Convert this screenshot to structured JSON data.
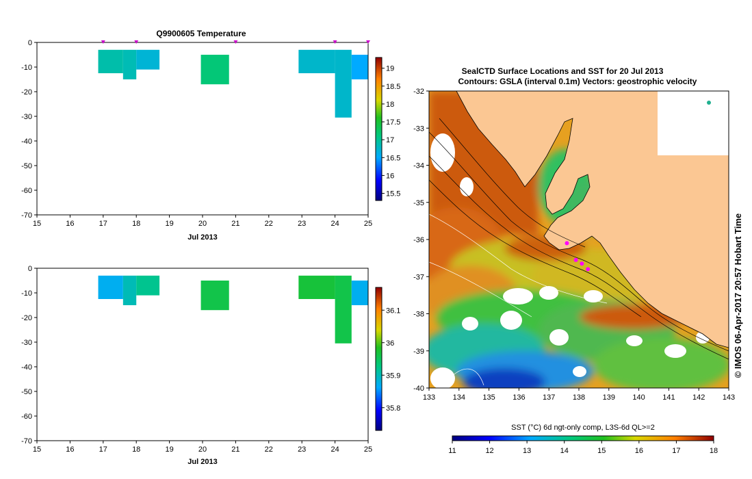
{
  "chart_data": [
    {
      "type": "heatmap",
      "title": "Q9900605  Temperature",
      "xlabel": "Jul 2013",
      "x_ticks": [
        "15",
        "16",
        "17",
        "18",
        "19",
        "20",
        "21",
        "22",
        "23",
        "24",
        "25"
      ],
      "xlim": [
        15,
        25
      ],
      "y_ticks": [
        "0",
        "-10",
        "-20",
        "-30",
        "-40",
        "-50",
        "-60",
        "-70"
      ],
      "ylim": [
        -70,
        0
      ],
      "profile_markers_day": [
        17,
        18,
        21,
        24,
        25
      ],
      "cells": [
        {
          "x0": 16.85,
          "x1": 17.6,
          "y0": -3,
          "y1": -12.5,
          "value": 16.9
        },
        {
          "x0": 17.6,
          "x1": 18.0,
          "y0": -3,
          "y1": -15,
          "value": 16.85
        },
        {
          "x0": 18.0,
          "x1": 18.7,
          "y0": -3,
          "y1": -11,
          "value": 16.7
        },
        {
          "x0": 19.95,
          "x1": 20.8,
          "y0": -5,
          "y1": -17,
          "value": 17.15
        },
        {
          "x0": 22.9,
          "x1": 24.0,
          "y0": -3,
          "y1": -12.5,
          "value": 16.75
        },
        {
          "x0": 24.0,
          "x1": 24.5,
          "y0": -3,
          "y1": -30.5,
          "value": 16.75
        },
        {
          "x0": 24.5,
          "x1": 25.0,
          "y0": -5,
          "y1": -15,
          "value": 16.5
        }
      ],
      "colorbar": {
        "ticks": [
          "19",
          "18.5",
          "18",
          "17.5",
          "17",
          "16.5",
          "16",
          "15.5"
        ],
        "range": [
          15.3,
          19.3
        ]
      }
    },
    {
      "type": "heatmap",
      "title": "",
      "xlabel": "Jul 2013",
      "x_ticks": [
        "15",
        "16",
        "17",
        "18",
        "19",
        "20",
        "21",
        "22",
        "23",
        "24",
        "25"
      ],
      "xlim": [
        15,
        25
      ],
      "y_ticks": [
        "0",
        "-10",
        "-20",
        "-30",
        "-40",
        "-50",
        "-60",
        "-70"
      ],
      "ylim": [
        -70,
        0
      ],
      "cells": [
        {
          "x0": 16.85,
          "x1": 17.6,
          "y0": -3,
          "y1": -12.5,
          "value": 35.87
        },
        {
          "x0": 17.6,
          "x1": 18.0,
          "y0": -3,
          "y1": -15,
          "value": 35.9
        },
        {
          "x0": 18.0,
          "x1": 18.7,
          "y0": -3,
          "y1": -11,
          "value": 35.92
        },
        {
          "x0": 19.95,
          "x1": 20.8,
          "y0": -5,
          "y1": -17,
          "value": 35.96
        },
        {
          "x0": 22.9,
          "x1": 24.0,
          "y0": -3,
          "y1": -12.5,
          "value": 35.97
        },
        {
          "x0": 24.0,
          "x1": 24.5,
          "y0": -3,
          "y1": -30.5,
          "value": 35.96
        },
        {
          "x0": 24.5,
          "x1": 25.0,
          "y0": -5,
          "y1": -15,
          "value": 35.87
        }
      ],
      "colorbar": {
        "ticks": [
          "36.1",
          "36",
          "35.9",
          "35.8"
        ],
        "range": [
          35.73,
          36.17
        ]
      }
    },
    {
      "type": "heatmap",
      "title": "SealCTD Surface Locations and SST for 20 Jul 2013",
      "subtitle": "Contours: GSLA (interval 0.1m) Vectors: geostrophic velocity",
      "x_ticks": [
        "133",
        "134",
        "135",
        "136",
        "137",
        "138",
        "139",
        "140",
        "141",
        "142",
        "143"
      ],
      "xlim": [
        133,
        143
      ],
      "y_ticks": [
        "-32",
        "-33",
        "-34",
        "-35",
        "-36",
        "-37",
        "-38",
        "-39",
        "-40"
      ],
      "ylim": [
        -40,
        -32
      ],
      "side_label": "© IMOS 06-Apr-2017 20:57 Hobart Time",
      "colorbar": {
        "label": "SST (°C) 6d ngt-only comp, L3S-6d QL>=2",
        "ticks": [
          "11",
          "12",
          "13",
          "14",
          "15",
          "16",
          "17",
          "18"
        ],
        "range": [
          11,
          18
        ]
      },
      "seal_locations": [
        {
          "lon": 137.6,
          "lat": -36.1
        },
        {
          "lon": 137.9,
          "lat": -36.55
        },
        {
          "lon": 138.1,
          "lat": -36.65
        },
        {
          "lon": 138.3,
          "lat": -36.8
        }
      ]
    }
  ]
}
